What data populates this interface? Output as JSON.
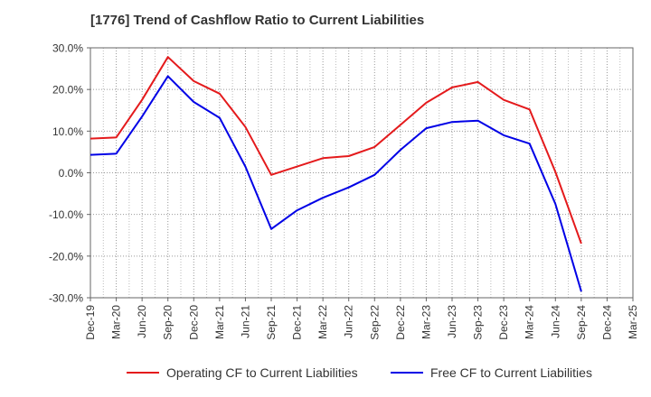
{
  "chart_data": {
    "type": "line",
    "title": "[1776]  Trend of Cashflow Ratio to Current Liabilities",
    "xlabel": "",
    "ylabel": "",
    "ylim": [
      -30,
      30
    ],
    "yticks": [
      "30.0%",
      "20.0%",
      "10.0%",
      "0.0%",
      "-10.0%",
      "-20.0%",
      "-30.0%"
    ],
    "ytick_values": [
      30,
      20,
      10,
      0,
      -10,
      -20,
      -30
    ],
    "categories": [
      "Dec-19",
      "Mar-20",
      "Jun-20",
      "Sep-20",
      "Dec-20",
      "Mar-21",
      "Jun-21",
      "Sep-21",
      "Dec-21",
      "Mar-22",
      "Jun-22",
      "Sep-22",
      "Dec-22",
      "Mar-23",
      "Jun-23",
      "Sep-23",
      "Dec-23",
      "Mar-24",
      "Jun-24",
      "Sep-24",
      "Dec-24",
      "Mar-25"
    ],
    "grid": true,
    "legend_position": "bottom",
    "series": [
      {
        "name": "Operating CF to Current Liabilities",
        "color": "#e41a1c",
        "values": [
          8.2,
          8.5,
          17.5,
          27.8,
          22.0,
          19.0,
          11.0,
          -0.5,
          1.5,
          3.5,
          4.0,
          6.2,
          11.5,
          16.8,
          20.5,
          21.8,
          17.5,
          15.2,
          0.2,
          -17.0,
          null,
          null
        ]
      },
      {
        "name": "Free CF to Current Liabilities",
        "color": "#0000e6",
        "values": [
          4.3,
          4.6,
          13.5,
          23.2,
          17.0,
          13.2,
          1.5,
          -13.5,
          -9.0,
          -6.0,
          -3.5,
          -0.5,
          5.5,
          10.7,
          12.2,
          12.5,
          9.0,
          7.0,
          -7.5,
          -28.5,
          null,
          null
        ]
      }
    ]
  }
}
